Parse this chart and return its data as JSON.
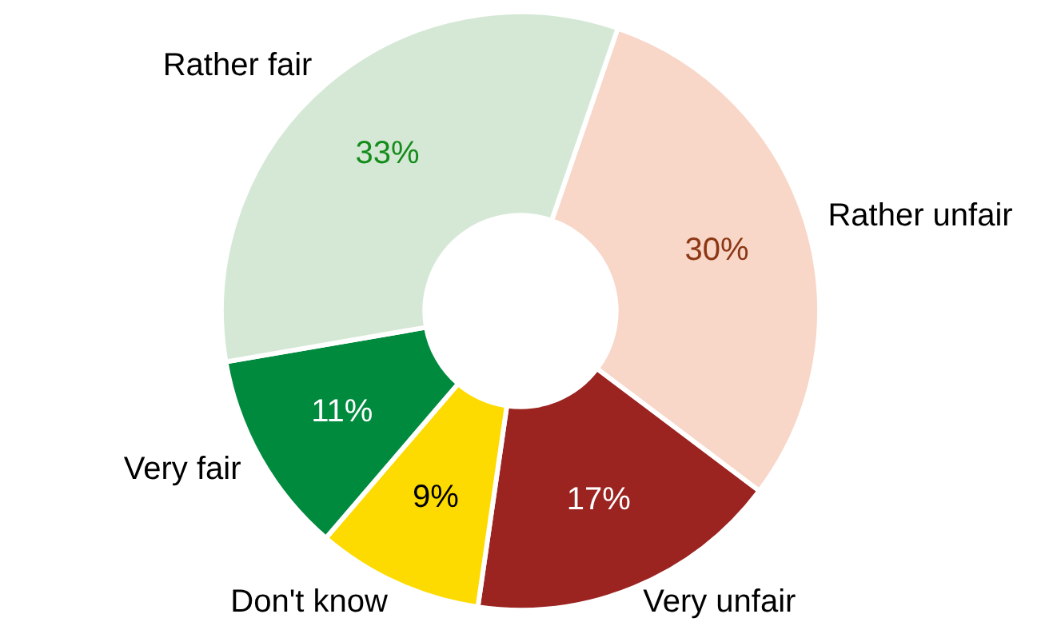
{
  "chart_data": {
    "type": "donut",
    "categories": [
      "Rather unfair",
      "Very unfair",
      "Don't know",
      "Very fair",
      "Rather fair"
    ],
    "values": [
      30,
      17,
      9,
      11,
      33
    ],
    "colors": [
      "#f8d6c8",
      "#9b2320",
      "#fddb00",
      "#008a3e",
      "#d5e8d6"
    ],
    "value_labels": [
      "30%",
      "17%",
      "9%",
      "11%",
      "33%"
    ],
    "legend": false
  }
}
